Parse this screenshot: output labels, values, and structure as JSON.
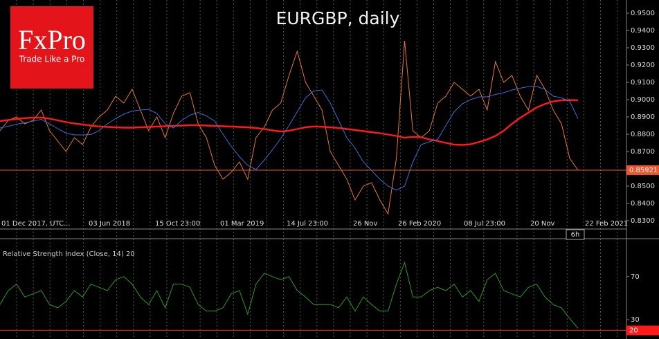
{
  "logo": {
    "brand": "FxPro",
    "tagline": "Trade Like a Pro"
  },
  "chart_data": [
    {
      "type": "line",
      "title": "EURGBP, daily",
      "xtick_labels": [
        "01 Dec 2017, UTC...",
        "03 Jun 2018",
        "15 Oct 23:00",
        "01 Mar 2019",
        "14 Jul 23:00",
        "26 Nov",
        "26 Feb 2020",
        "08 Jul 23:00",
        "20 Nov",
        "22 Feb 2021"
      ],
      "ylim": [
        0.8252,
        0.9576
      ],
      "yticks": [
        {
          "value": 0.83,
          "label": "0.8300"
        },
        {
          "value": 0.84,
          "label": "0.8400"
        },
        {
          "value": 0.85,
          "label": "0.8500"
        },
        {
          "value": 0.86,
          "label": "0.8600"
        },
        {
          "value": 0.87,
          "label": "0.8700"
        },
        {
          "value": 0.88,
          "label": "0.8800"
        },
        {
          "value": 0.89,
          "label": "0.8900"
        },
        {
          "value": 0.9,
          "label": "0.9000"
        },
        {
          "value": 0.91,
          "label": "0.9100"
        },
        {
          "value": 0.92,
          "label": "0.9200"
        },
        {
          "value": 0.93,
          "label": "0.9300"
        },
        {
          "value": 0.94,
          "label": "0.9400"
        },
        {
          "value": 0.95,
          "label": "0.9500"
        }
      ],
      "last_price": {
        "value": 0.85921,
        "label": "0.85921",
        "color": "#f0542a"
      },
      "annotations": [
        "6h"
      ],
      "series": [
        {
          "color": "#e8782c",
          "values": [
            0.882,
            0.888,
            0.89,
            0.886,
            0.888,
            0.894,
            0.882,
            0.876,
            0.87,
            0.878,
            0.874,
            0.884,
            0.89,
            0.894,
            0.902,
            0.898,
            0.906,
            0.894,
            0.882,
            0.89,
            0.878,
            0.892,
            0.902,
            0.904,
            0.886,
            0.878,
            0.862,
            0.854,
            0.858,
            0.864,
            0.854,
            0.878,
            0.884,
            0.894,
            0.898,
            0.914,
            0.928,
            0.91,
            0.902,
            0.894,
            0.87,
            0.862,
            0.854,
            0.842,
            0.85,
            0.852,
            0.842,
            0.834,
            0.866,
            0.934,
            0.882,
            0.878,
            0.882,
            0.898,
            0.902,
            0.91,
            0.906,
            0.902,
            0.906,
            0.894,
            0.922,
            0.91,
            0.914,
            0.902,
            0.894,
            0.914,
            0.906,
            0.894,
            0.886,
            0.866,
            0.8592
          ]
        },
        {
          "color": "#ff1a1a",
          "values": [
            0.8876,
            0.8882,
            0.8888,
            0.8893,
            0.8896,
            0.8896,
            0.889,
            0.888,
            0.887,
            0.8862,
            0.8856,
            0.885,
            0.8845,
            0.8842,
            0.884,
            0.8838,
            0.8838,
            0.884,
            0.8842,
            0.8844,
            0.8846,
            0.8848,
            0.885,
            0.8852,
            0.8852,
            0.885,
            0.8848,
            0.8846,
            0.8844,
            0.8842,
            0.884,
            0.8836,
            0.883,
            0.8822,
            0.8816,
            0.882,
            0.883,
            0.884,
            0.8845,
            0.8843,
            0.884,
            0.8836,
            0.883,
            0.8824,
            0.8818,
            0.8812,
            0.8806,
            0.8798,
            0.879,
            0.878,
            0.8785,
            0.8782,
            0.877,
            0.876,
            0.875,
            0.874,
            0.8738,
            0.8742,
            0.8755,
            0.877,
            0.879,
            0.882,
            0.886,
            0.8895,
            0.8925,
            0.8955,
            0.8975,
            0.899,
            0.8996,
            0.8998,
            0.8996
          ]
        },
        {
          "color": "#3a6fd8",
          "values": [
            0.8836,
            0.8846,
            0.8858,
            0.8866,
            0.8876,
            0.8886,
            0.886,
            0.8832,
            0.8806,
            0.8796,
            0.8796,
            0.8798,
            0.882,
            0.886,
            0.889,
            0.8916,
            0.8934,
            0.894,
            0.8944,
            0.892,
            0.886,
            0.8836,
            0.888,
            0.891,
            0.8926,
            0.8906,
            0.8876,
            0.88,
            0.873,
            0.867,
            0.862,
            0.8596,
            0.865,
            0.871,
            0.8776,
            0.885,
            0.893,
            0.901,
            0.905,
            0.9056,
            0.898,
            0.888,
            0.878,
            0.872,
            0.864,
            0.859,
            0.854,
            0.85,
            0.8476,
            0.85,
            0.864,
            0.874,
            0.8756,
            0.877,
            0.885,
            0.893,
            0.8976,
            0.9,
            0.9016,
            0.9016,
            0.903,
            0.904,
            0.9056,
            0.9066,
            0.9076,
            0.9076,
            0.906,
            0.902,
            0.901,
            0.899,
            0.889
          ]
        }
      ]
    },
    {
      "type": "line",
      "title": "Relative Strength Index (Close, 14) 20",
      "ylim": [
        12,
        102
      ],
      "yticks": [
        30,
        70
      ],
      "level": 20,
      "level_color": "#ff1a1a",
      "series": [
        {
          "color": "#2e9a1e",
          "values": [
            44,
            57,
            63,
            51,
            54,
            57,
            44,
            41,
            47,
            57,
            51,
            63,
            60,
            57,
            67,
            70,
            63,
            51,
            44,
            57,
            41,
            63,
            63,
            60,
            44,
            38,
            38,
            41,
            54,
            57,
            35,
            63,
            73,
            70,
            67,
            70,
            57,
            51,
            44,
            44,
            44,
            41,
            51,
            38,
            51,
            44,
            38,
            38,
            63,
            83,
            51,
            51,
            57,
            60,
            57,
            63,
            51,
            57,
            47,
            67,
            73,
            57,
            54,
            51,
            60,
            63,
            51,
            44,
            41,
            31,
            22
          ]
        }
      ]
    }
  ]
}
